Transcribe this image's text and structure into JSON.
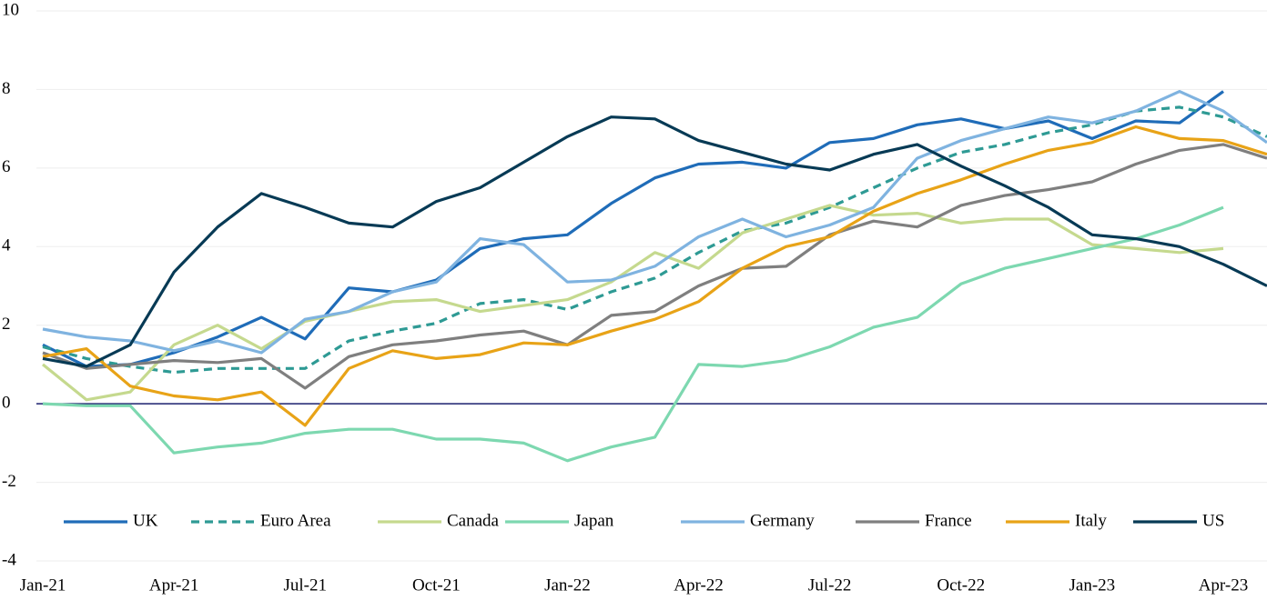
{
  "chart_data": {
    "type": "line",
    "categories": [
      "Jan-21",
      null,
      null,
      "Apr-21",
      null,
      null,
      "Jul-21",
      null,
      null,
      "Oct-21",
      null,
      null,
      "Jan-22",
      null,
      null,
      "Apr-22",
      null,
      null,
      "Jul-22",
      null,
      null,
      "Oct-22",
      null,
      null,
      "Jan-23",
      null,
      null,
      "Apr-23",
      null
    ],
    "ylim": [
      -4,
      10
    ],
    "yticks": [
      -4,
      -2,
      0,
      2,
      4,
      6,
      8,
      10
    ],
    "grid": true,
    "legend": "bottom",
    "series": [
      {
        "name": "UK",
        "color": "#1f6cb8",
        "values": [
          1.5,
          0.95,
          1.0,
          1.3,
          1.7,
          2.2,
          1.65,
          2.95,
          2.85,
          3.15,
          3.95,
          4.2,
          4.3,
          5.1,
          5.75,
          6.1,
          6.15,
          6.0,
          6.65,
          6.75,
          7.1,
          7.25,
          7.0,
          7.2,
          6.75,
          7.2,
          7.15,
          7.95,
          null
        ]
      },
      {
        "name": "Euro Area",
        "color": "#2e9a94",
        "dashed": true,
        "values": [
          1.45,
          1.15,
          0.95,
          0.8,
          0.9,
          0.9,
          0.9,
          1.6,
          1.85,
          2.05,
          2.55,
          2.65,
          2.4,
          2.85,
          3.2,
          3.85,
          4.4,
          4.6,
          5.0,
          5.5,
          6.0,
          6.4,
          6.6,
          6.9,
          7.1,
          7.45,
          7.55,
          7.3,
          6.8
        ]
      },
      {
        "name": "Canada",
        "color": "#c5d98e",
        "values": [
          1.0,
          0.1,
          0.3,
          1.5,
          2.0,
          1.4,
          2.1,
          2.35,
          2.6,
          2.65,
          2.35,
          2.5,
          2.65,
          3.1,
          3.85,
          3.45,
          4.35,
          4.7,
          5.05,
          4.8,
          4.85,
          4.6,
          4.7,
          4.7,
          4.05,
          3.95,
          3.85,
          3.95,
          null
        ]
      },
      {
        "name": "Japan",
        "color": "#7dd8b0",
        "values": [
          0.0,
          -0.05,
          -0.05,
          -1.25,
          -1.1,
          -1.0,
          -0.75,
          -0.65,
          -0.65,
          -0.9,
          -0.9,
          -1.0,
          -1.45,
          -1.1,
          -0.85,
          1.0,
          0.95,
          1.1,
          1.45,
          1.95,
          2.2,
          3.05,
          3.45,
          3.7,
          3.95,
          4.2,
          4.55,
          5.0,
          null
        ]
      },
      {
        "name": "Germany",
        "color": "#7fb3e0",
        "values": [
          1.9,
          1.7,
          1.6,
          1.35,
          1.6,
          1.3,
          2.15,
          2.35,
          2.85,
          3.1,
          4.2,
          4.05,
          3.1,
          3.15,
          3.5,
          4.25,
          4.7,
          4.25,
          4.55,
          5.0,
          6.25,
          6.7,
          7.0,
          7.3,
          7.15,
          7.45,
          7.95,
          7.45,
          6.65
        ]
      },
      {
        "name": "France",
        "color": "#7f7f7f",
        "values": [
          1.3,
          0.9,
          1.0,
          1.1,
          1.05,
          1.15,
          0.4,
          1.2,
          1.5,
          1.6,
          1.75,
          1.85,
          1.5,
          2.25,
          2.35,
          3.0,
          3.45,
          3.5,
          4.3,
          4.65,
          4.5,
          5.05,
          5.3,
          5.45,
          5.65,
          6.1,
          6.45,
          6.6,
          6.25
        ]
      },
      {
        "name": "Italy",
        "color": "#e8a317",
        "values": [
          1.2,
          1.4,
          0.45,
          0.2,
          0.1,
          0.3,
          -0.55,
          0.9,
          1.35,
          1.15,
          1.25,
          1.55,
          1.5,
          1.85,
          2.15,
          2.6,
          3.45,
          4.0,
          4.25,
          4.9,
          5.35,
          5.7,
          6.1,
          6.45,
          6.65,
          7.05,
          6.75,
          6.7,
          6.35
        ]
      },
      {
        "name": "US",
        "color": "#073a55",
        "values": [
          1.15,
          0.95,
          1.5,
          3.35,
          4.5,
          5.35,
          5.0,
          4.6,
          4.5,
          5.15,
          5.5,
          6.15,
          6.8,
          7.3,
          7.25,
          6.7,
          6.4,
          6.1,
          5.95,
          6.35,
          6.6,
          6.05,
          5.55,
          5.0,
          4.3,
          4.2,
          4.0,
          3.55,
          3.0
        ]
      }
    ]
  }
}
